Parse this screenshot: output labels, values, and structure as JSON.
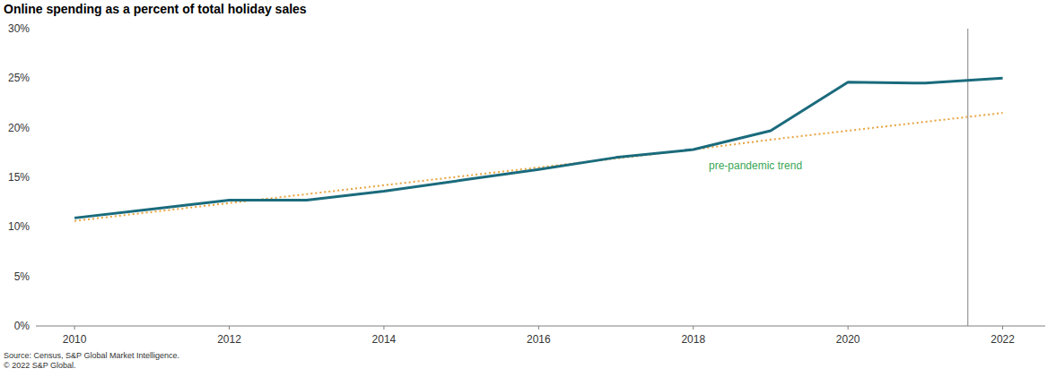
{
  "chart_data": {
    "type": "line",
    "title": "Online spending as a percent of total holiday sales",
    "x": [
      2010,
      2011,
      2012,
      2013,
      2014,
      2015,
      2016,
      2017,
      2018,
      2019,
      2020,
      2021,
      2022
    ],
    "series": [
      {
        "color": "#1a6b7c",
        "line_style": "solid",
        "values": [
          10.9,
          11.8,
          12.7,
          12.7,
          13.6,
          14.7,
          15.8,
          17.0,
          17.8,
          19.7,
          24.6,
          24.5,
          25.0
        ]
      },
      {
        "name": "pre-pandemic trend",
        "color": "#e8a33d",
        "line_style": "dotted",
        "values": [
          10.6,
          11.5,
          12.4,
          13.3,
          14.2,
          15.1,
          16.0,
          16.9,
          17.8,
          18.8,
          19.7,
          20.6,
          21.5
        ]
      }
    ],
    "xlim": [
      2009.5,
      2022.55
    ],
    "xticks": [
      2010,
      2012,
      2014,
      2016,
      2018,
      2020,
      2022
    ],
    "ylim": [
      0,
      30
    ],
    "yticks": [
      {
        "value": 0,
        "label": "0%"
      },
      {
        "value": 5,
        "label": "5%"
      },
      {
        "value": 10,
        "label": "10%"
      },
      {
        "value": 15,
        "label": "15%"
      },
      {
        "value": 20,
        "label": "20%"
      },
      {
        "value": 25,
        "label": "25%"
      },
      {
        "value": 30,
        "label": "30%"
      }
    ],
    "reference_line_x": 2021.55,
    "grid": false,
    "source": "Source: Census, S&P Global Market Intelligence.",
    "copyright": "© 2022 S&P Global."
  }
}
